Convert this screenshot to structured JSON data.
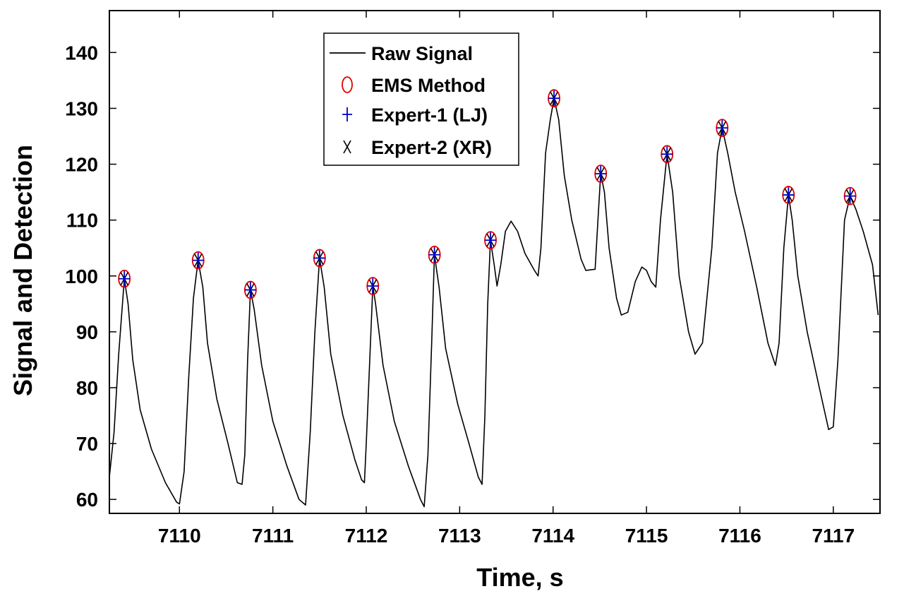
{
  "chart_data": {
    "type": "line",
    "xlabel": "Time, s",
    "ylabel": "Signal and Detection",
    "xlim": [
      7109.25,
      7117.5
    ],
    "ylim": [
      57.5,
      147.5
    ],
    "xticks": [
      7110,
      7111,
      7112,
      7113,
      7114,
      7115,
      7116,
      7117
    ],
    "yticks": [
      60,
      70,
      80,
      90,
      100,
      110,
      120,
      130,
      140
    ],
    "grid": false,
    "legend_position": "top-center",
    "legend": [
      {
        "label": "Raw Signal",
        "marker": "line",
        "color": "#000000"
      },
      {
        "label": "EMS Method",
        "marker": "ellipse",
        "color": "#e00000"
      },
      {
        "label": "Expert-1 (LJ)",
        "marker": "plus",
        "color": "#0000cc"
      },
      {
        "label": "Expert-2 (XR)",
        "marker": "x",
        "color": "#000000"
      }
    ],
    "series": [
      {
        "name": "Raw Signal",
        "color": "#000000",
        "points": [
          [
            7109.25,
            64
          ],
          [
            7109.3,
            72
          ],
          [
            7109.35,
            86
          ],
          [
            7109.41,
            99.5
          ],
          [
            7109.45,
            95
          ],
          [
            7109.5,
            85
          ],
          [
            7109.58,
            76
          ],
          [
            7109.7,
            69
          ],
          [
            7109.85,
            63
          ],
          [
            7109.97,
            59.5
          ],
          [
            7110.0,
            59.2
          ],
          [
            7110.05,
            65
          ],
          [
            7110.1,
            82
          ],
          [
            7110.15,
            96
          ],
          [
            7110.2,
            102.8
          ],
          [
            7110.25,
            98
          ],
          [
            7110.3,
            88
          ],
          [
            7110.4,
            78
          ],
          [
            7110.52,
            70
          ],
          [
            7110.62,
            63
          ],
          [
            7110.67,
            62.7
          ],
          [
            7110.7,
            68
          ],
          [
            7110.73,
            85
          ],
          [
            7110.76,
            97.5
          ],
          [
            7110.8,
            94
          ],
          [
            7110.88,
            84
          ],
          [
            7111.0,
            74
          ],
          [
            7111.15,
            66
          ],
          [
            7111.28,
            60
          ],
          [
            7111.35,
            59
          ],
          [
            7111.4,
            72
          ],
          [
            7111.45,
            90
          ],
          [
            7111.5,
            103.2
          ],
          [
            7111.55,
            98
          ],
          [
            7111.62,
            86
          ],
          [
            7111.75,
            75
          ],
          [
            7111.88,
            67
          ],
          [
            7111.95,
            63.5
          ],
          [
            7111.98,
            63
          ],
          [
            7112.0,
            70
          ],
          [
            7112.04,
            86
          ],
          [
            7112.07,
            98.2
          ],
          [
            7112.1,
            95
          ],
          [
            7112.18,
            84
          ],
          [
            7112.3,
            74
          ],
          [
            7112.45,
            66
          ],
          [
            7112.58,
            60
          ],
          [
            7112.62,
            58.7
          ],
          [
            7112.66,
            68
          ],
          [
            7112.7,
            88
          ],
          [
            7112.73,
            103.8
          ],
          [
            7112.78,
            98
          ],
          [
            7112.85,
            87
          ],
          [
            7112.98,
            77
          ],
          [
            7113.1,
            70
          ],
          [
            7113.2,
            64
          ],
          [
            7113.24,
            62.7
          ],
          [
            7113.27,
            75
          ],
          [
            7113.3,
            95
          ],
          [
            7113.33,
            106.4
          ],
          [
            7113.37,
            102
          ],
          [
            7113.4,
            98.2
          ],
          [
            7113.44,
            102
          ],
          [
            7113.49,
            108
          ],
          [
            7113.55,
            109.8
          ],
          [
            7113.62,
            108
          ],
          [
            7113.7,
            104
          ],
          [
            7113.8,
            101
          ],
          [
            7113.84,
            100
          ],
          [
            7113.87,
            105
          ],
          [
            7113.92,
            122
          ],
          [
            7113.97,
            128
          ],
          [
            7114.01,
            131.8
          ],
          [
            7114.06,
            128
          ],
          [
            7114.12,
            118
          ],
          [
            7114.2,
            110
          ],
          [
            7114.3,
            103
          ],
          [
            7114.35,
            101
          ],
          [
            7114.45,
            101.2
          ],
          [
            7114.48,
            110
          ],
          [
            7114.51,
            118.3
          ],
          [
            7114.55,
            115
          ],
          [
            7114.6,
            105
          ],
          [
            7114.68,
            96
          ],
          [
            7114.73,
            93
          ],
          [
            7114.8,
            93.5
          ],
          [
            7114.88,
            99
          ],
          [
            7114.95,
            101.6
          ],
          [
            7115.0,
            101
          ],
          [
            7115.05,
            99
          ],
          [
            7115.1,
            98
          ],
          [
            7115.15,
            110
          ],
          [
            7115.22,
            121.8
          ],
          [
            7115.28,
            115
          ],
          [
            7115.35,
            100
          ],
          [
            7115.45,
            90
          ],
          [
            7115.52,
            86
          ],
          [
            7115.6,
            88
          ],
          [
            7115.7,
            105
          ],
          [
            7115.76,
            122
          ],
          [
            7115.81,
            126.5
          ],
          [
            7115.87,
            122
          ],
          [
            7115.95,
            115
          ],
          [
            7116.05,
            108
          ],
          [
            7116.18,
            98
          ],
          [
            7116.3,
            88
          ],
          [
            7116.38,
            84
          ],
          [
            7116.42,
            88
          ],
          [
            7116.47,
            105
          ],
          [
            7116.52,
            114.5
          ],
          [
            7116.56,
            110
          ],
          [
            7116.62,
            100
          ],
          [
            7116.72,
            90
          ],
          [
            7116.85,
            80
          ],
          [
            7116.95,
            72.5
          ],
          [
            7117.0,
            73
          ],
          [
            7117.05,
            85
          ],
          [
            7117.12,
            110
          ],
          [
            7117.18,
            114.3
          ],
          [
            7117.24,
            112
          ],
          [
            7117.32,
            108
          ],
          [
            7117.42,
            102
          ],
          [
            7117.48,
            93
          ]
        ]
      }
    ],
    "detections": {
      "EMS Method": [
        [
          7109.41,
          99.5
        ],
        [
          7110.2,
          102.8
        ],
        [
          7110.76,
          97.5
        ],
        [
          7111.5,
          103.2
        ],
        [
          7112.07,
          98.2
        ],
        [
          7112.73,
          103.8
        ],
        [
          7113.33,
          106.4
        ],
        [
          7114.01,
          131.8
        ],
        [
          7114.51,
          118.3
        ],
        [
          7115.22,
          121.8
        ],
        [
          7115.81,
          126.5
        ],
        [
          7116.52,
          114.5
        ],
        [
          7117.18,
          114.3
        ]
      ],
      "Expert-1 (LJ)": [
        [
          7109.41,
          99.5
        ],
        [
          7110.2,
          102.8
        ],
        [
          7110.76,
          97.5
        ],
        [
          7111.5,
          103.2
        ],
        [
          7112.07,
          98.2
        ],
        [
          7112.73,
          103.8
        ],
        [
          7113.33,
          106.4
        ],
        [
          7114.01,
          131.8
        ],
        [
          7114.51,
          118.3
        ],
        [
          7115.22,
          121.8
        ],
        [
          7115.81,
          126.5
        ],
        [
          7116.52,
          114.5
        ],
        [
          7117.18,
          114.3
        ]
      ],
      "Expert-2 (XR)": [
        [
          7109.41,
          99.5
        ],
        [
          7110.2,
          102.8
        ],
        [
          7110.76,
          97.5
        ],
        [
          7111.5,
          103.2
        ],
        [
          7112.07,
          98.2
        ],
        [
          7112.73,
          103.8
        ],
        [
          7113.33,
          106.4
        ],
        [
          7114.01,
          131.8
        ],
        [
          7114.51,
          118.3
        ],
        [
          7115.22,
          121.8
        ],
        [
          7115.81,
          126.5
        ],
        [
          7116.52,
          114.5
        ],
        [
          7117.18,
          114.3
        ]
      ]
    }
  }
}
